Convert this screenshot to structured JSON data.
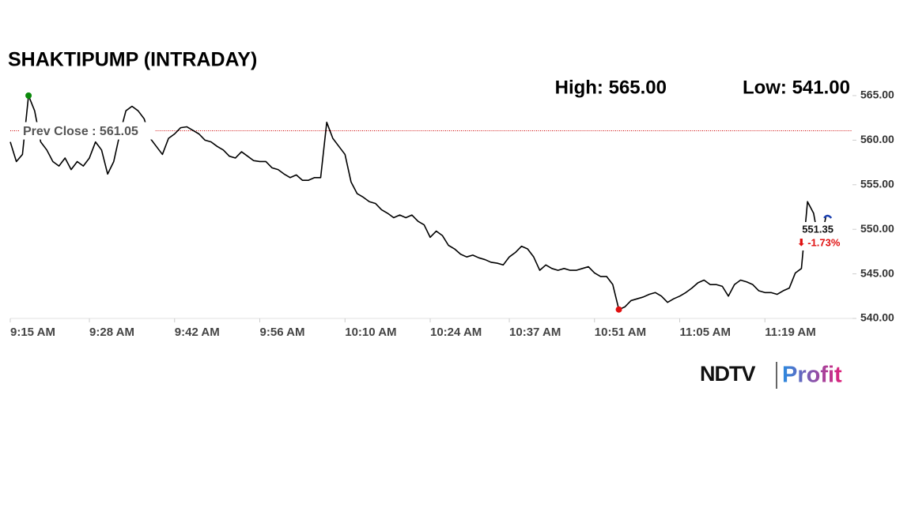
{
  "chart_data": {
    "type": "line",
    "title": "SHAKTIPUMP (INTRADAY)",
    "high_label": "High: 565.00",
    "low_label": "Low: 541.00",
    "prev_close": 561.05,
    "prev_close_label": "Prev Close : 561.05",
    "last_price_label": "551.35",
    "change_label": "-1.73%",
    "brand": [
      "NDTV",
      "Profit"
    ],
    "x": [
      "9:15 AM",
      "9:16 AM",
      "9:17 AM",
      "9:18 AM",
      "9:19 AM",
      "9:20 AM",
      "9:21 AM",
      "9:22 AM",
      "9:23 AM",
      "9:24 AM",
      "9:25 AM",
      "9:26 AM",
      "9:27 AM",
      "9:28 AM",
      "9:29 AM",
      "9:30 AM",
      "9:31 AM",
      "9:32 AM",
      "9:33 AM",
      "9:34 AM",
      "9:35 AM",
      "9:36 AM",
      "9:37 AM",
      "9:38 AM",
      "9:39 AM",
      "9:40 AM",
      "9:41 AM",
      "9:42 AM",
      "9:43 AM",
      "9:44 AM",
      "9:45 AM",
      "9:46 AM",
      "9:47 AM",
      "9:48 AM",
      "9:49 AM",
      "9:50 AM",
      "9:51 AM",
      "9:52 AM",
      "9:53 AM",
      "9:54 AM",
      "9:55 AM",
      "9:56 AM",
      "9:57 AM",
      "9:58 AM",
      "9:59 AM",
      "10:00 AM",
      "10:01 AM",
      "10:02 AM",
      "10:03 AM",
      "10:04 AM",
      "10:05 AM",
      "10:06 AM",
      "10:07 AM",
      "10:08 AM",
      "10:09 AM",
      "10:10 AM",
      "10:11 AM",
      "10:12 AM",
      "10:13 AM",
      "10:14 AM",
      "10:15 AM",
      "10:16 AM",
      "10:17 AM",
      "10:18 AM",
      "10:19 AM",
      "10:20 AM",
      "10:21 AM",
      "10:22 AM",
      "10:23 AM",
      "10:24 AM",
      "10:25 AM",
      "10:26 AM",
      "10:27 AM",
      "10:28 AM",
      "10:29 AM",
      "10:30 AM",
      "10:31 AM",
      "10:32 AM",
      "10:33 AM",
      "10:34 AM",
      "10:35 AM",
      "10:36 AM",
      "10:37 AM",
      "10:38 AM",
      "10:39 AM",
      "10:40 AM",
      "10:41 AM",
      "10:42 AM",
      "10:43 AM",
      "10:44 AM",
      "10:45 AM",
      "10:46 AM",
      "10:47 AM",
      "10:48 AM",
      "10:49 AM",
      "10:50 AM",
      "10:51 AM",
      "10:52 AM",
      "10:53 AM",
      "10:54 AM",
      "10:55 AM",
      "10:56 AM",
      "10:57 AM",
      "10:58 AM",
      "10:59 AM",
      "11:00 AM",
      "11:01 AM",
      "11:02 AM",
      "11:03 AM",
      "11:04 AM",
      "11:05 AM",
      "11:06 AM",
      "11:07 AM",
      "11:08 AM",
      "11:09 AM",
      "11:10 AM",
      "11:11 AM",
      "11:12 AM",
      "11:13 AM",
      "11:14 AM",
      "11:15 AM",
      "11:16 AM",
      "11:17 AM",
      "11:18 AM",
      "11:19 AM",
      "11:20 AM",
      "11:21 AM",
      "11:22 AM",
      "11:23 AM",
      "11:24 AM",
      "11:25 AM",
      "11:26 AM",
      "11:27 AM",
      "11:28 AM",
      "11:29 AM"
    ],
    "series": [
      {
        "color": "#000000",
        "values": [
          559.8,
          557.6,
          558.4,
          565,
          563.3,
          559.8,
          558.9,
          557.6,
          557.1,
          558,
          556.7,
          557.6,
          557.1,
          558,
          559.8,
          558.9,
          556.2,
          557.6,
          560.7,
          563.3,
          563.8,
          563.3,
          562.4,
          560.2,
          559.3,
          558.4,
          560.2,
          560.7,
          561.4,
          561.5,
          561.1,
          560.7,
          560,
          559.8,
          559.3,
          558.9,
          558.2,
          558,
          558.7,
          558.2,
          557.7,
          557.6,
          557.6,
          556.9,
          556.7,
          556.2,
          555.8,
          556.1,
          555.5,
          555.5,
          555.8,
          555.8,
          562,
          560.2,
          559.3,
          558.4,
          555.3,
          554,
          553.6,
          553.1,
          552.9,
          552.2,
          551.8,
          551.3,
          551.6,
          551.3,
          551.6,
          550.9,
          550.5,
          549.1,
          549.8,
          549.3,
          548.2,
          547.8,
          547.2,
          546.9,
          547.1,
          546.8,
          546.6,
          546.3,
          546.2,
          546,
          546.9,
          547.4,
          548.1,
          547.8,
          546.9,
          545.4,
          546,
          545.6,
          545.4,
          545.6,
          545.4,
          545.4,
          545.6,
          545.8,
          545.1,
          544.7,
          544.7,
          543.8,
          541,
          541.3,
          542,
          542.2,
          542.4,
          542.7,
          542.9,
          542.5,
          541.8,
          542.2,
          542.5,
          542.9,
          543.4,
          544,
          544.3,
          543.8,
          543.8,
          543.6,
          542.5,
          543.8,
          544.3,
          544.1,
          543.8,
          543.1,
          542.9,
          542.9,
          542.7,
          543.1,
          543.4,
          545.1,
          545.6,
          553.1,
          551.8,
          548,
          551.35
        ]
      }
    ],
    "xlim": [
      "9:15 AM",
      "11:33 AM"
    ],
    "xticks": [
      "9:15 AM",
      "9:28 AM",
      "9:42 AM",
      "9:56 AM",
      "10:10 AM",
      "10:24 AM",
      "10:37 AM",
      "10:51 AM",
      "11:05 AM",
      "11:19 AM"
    ],
    "ylim": [
      540,
      565
    ],
    "yticks": [
      {
        "value": 540,
        "label": "540.00"
      },
      {
        "value": 545,
        "label": "545.00"
      },
      {
        "value": 550,
        "label": "550.00"
      },
      {
        "value": 555,
        "label": "555.00"
      },
      {
        "value": 560,
        "label": "560.00"
      },
      {
        "value": 565,
        "label": "565.00"
      }
    ],
    "high_color": "#0a8a0a",
    "low_color": "#e01010",
    "last_color": "#1a3fb0",
    "prev_close_color": "#cc0000"
  }
}
